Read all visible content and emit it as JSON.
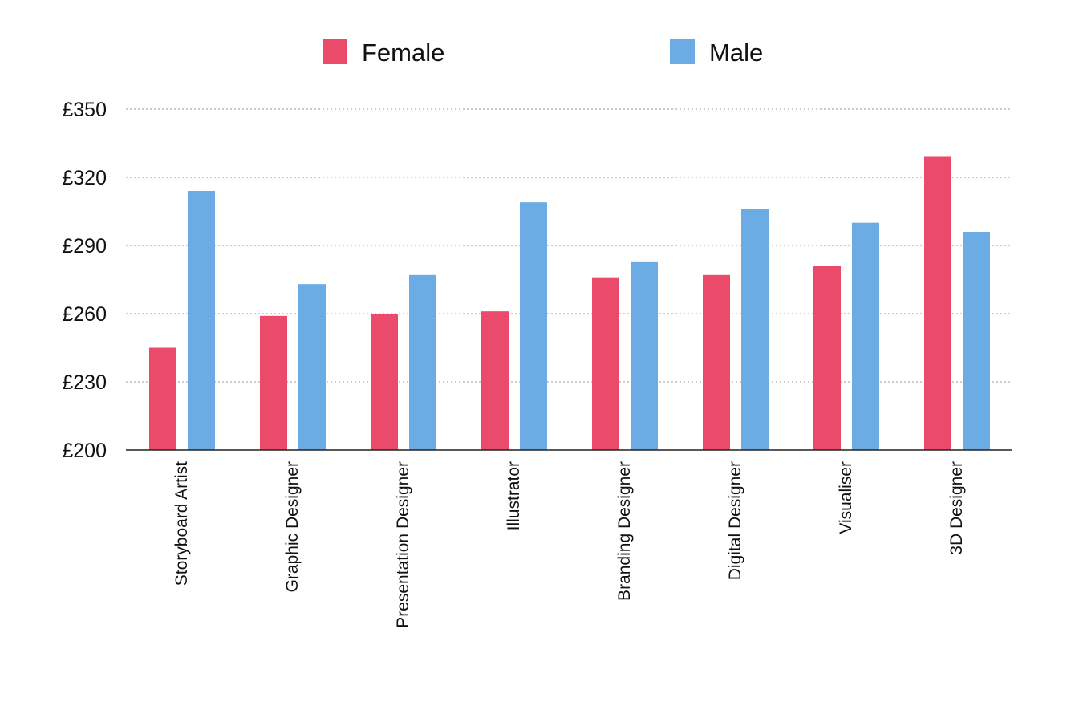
{
  "chart_data": {
    "type": "bar",
    "categories": [
      "Storyboard Artist",
      "Graphic Designer",
      "Presentation Designer",
      "Illustrator",
      "Branding Designer",
      "Digital Designer",
      "Visualiser",
      "3D Designer"
    ],
    "series": [
      {
        "name": "Female",
        "color": "#ec4a6a",
        "values": [
          245,
          259,
          260,
          261,
          276,
          277,
          281,
          329
        ]
      },
      {
        "name": "Male",
        "color": "#6aace3",
        "values": [
          314,
          273,
          277,
          309,
          283,
          306,
          300,
          296
        ]
      }
    ],
    "ylim": [
      200,
      350
    ],
    "yticks": [
      200,
      230,
      260,
      290,
      320,
      350
    ],
    "ytick_labels": [
      "£200",
      "£230",
      "£260",
      "£290",
      "£320",
      "£350"
    ],
    "grid": true,
    "legend_position": "top-center"
  }
}
